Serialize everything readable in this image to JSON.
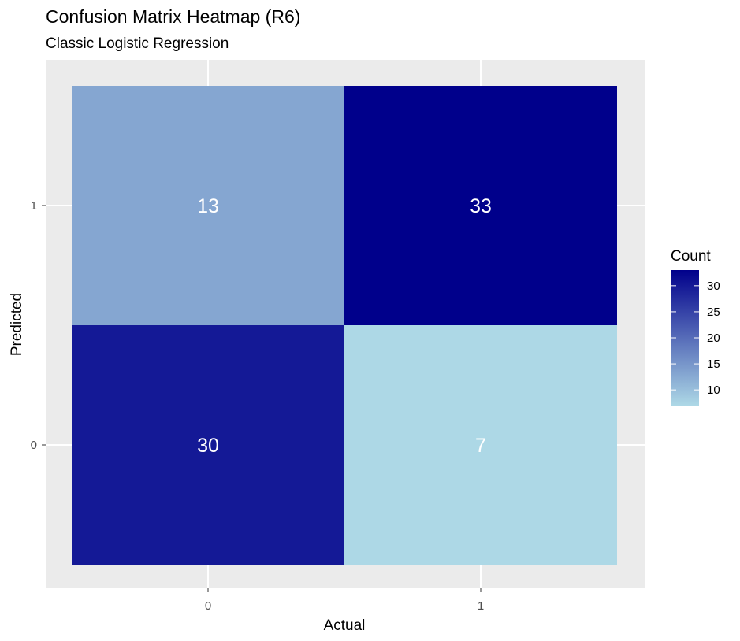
{
  "chart_data": {
    "type": "heatmap",
    "title": "Confusion Matrix Heatmap (R6)",
    "subtitle": "Classic Logistic Regression",
    "xlabel": "Actual",
    "ylabel": "Predicted",
    "x_categories": [
      "0",
      "1"
    ],
    "y_categories": [
      "0",
      "1"
    ],
    "cells": [
      {
        "x": "0",
        "y": "1",
        "value": 13
      },
      {
        "x": "1",
        "y": "1",
        "value": 33
      },
      {
        "x": "0",
        "y": "0",
        "value": 30
      },
      {
        "x": "1",
        "y": "0",
        "value": 7
      }
    ],
    "color_scale": {
      "low": "#add8e6",
      "high": "#00008b"
    },
    "legend": {
      "title": "Count",
      "position": "right",
      "ticks": [
        10,
        15,
        20,
        25,
        30
      ]
    },
    "grid": true
  }
}
